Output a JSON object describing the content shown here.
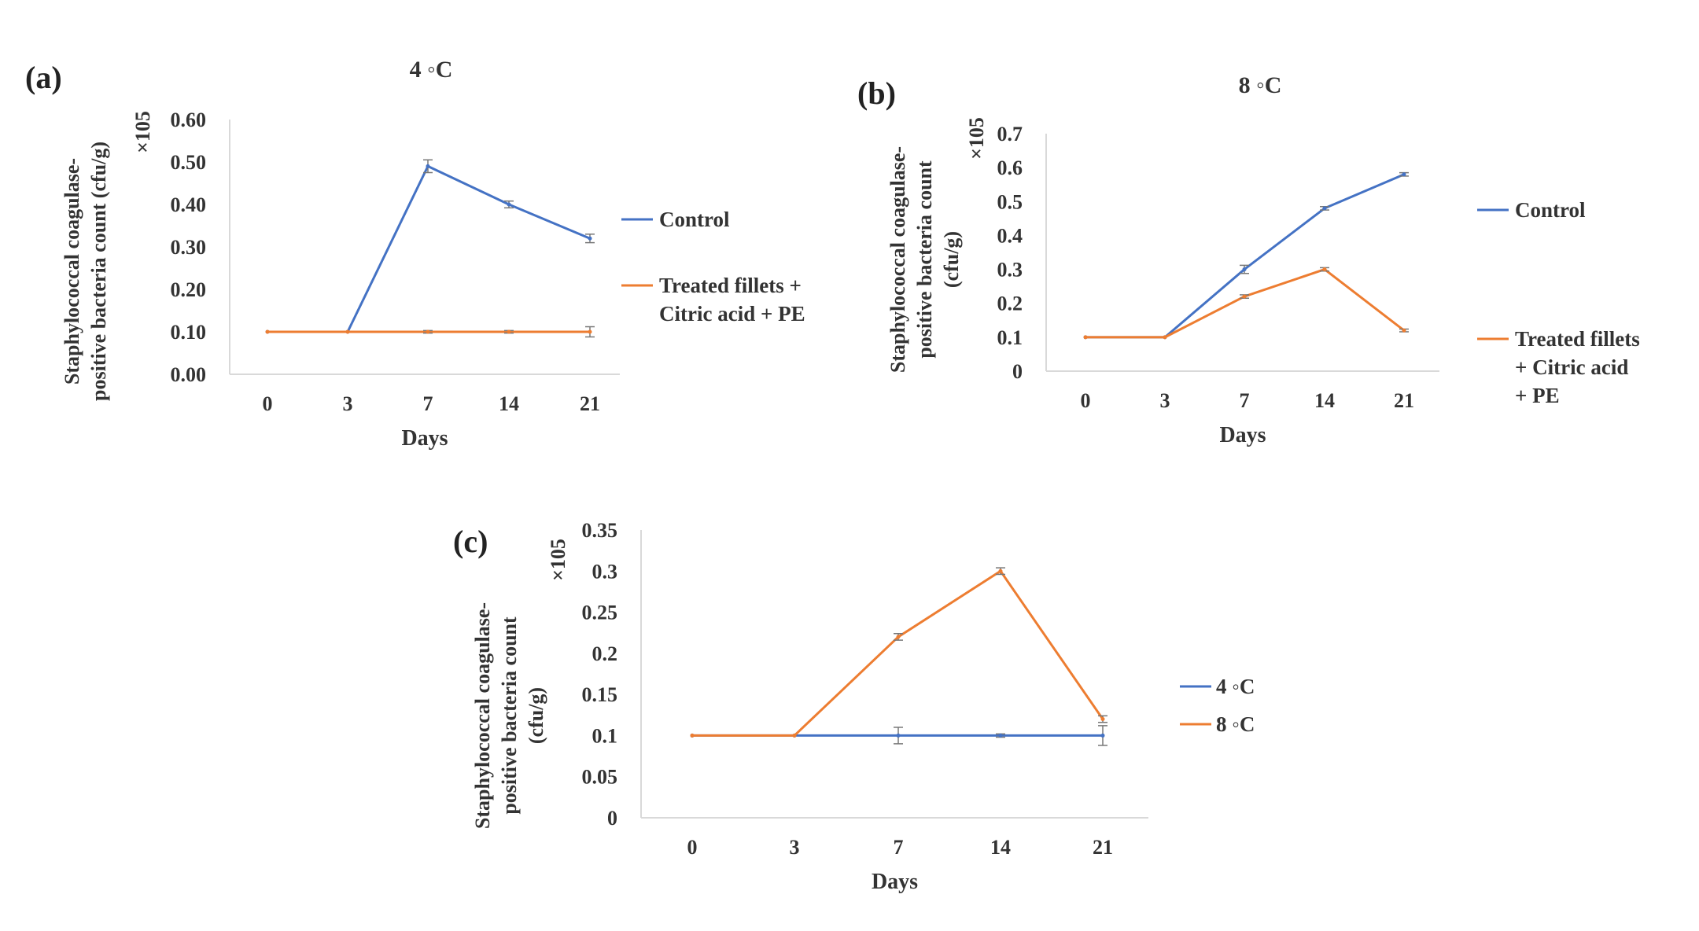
{
  "chart_data": [
    {
      "type": "line",
      "panel_label": "(a)",
      "title": "4 ◦C",
      "xlabel": "Days",
      "ylabel_lines": [
        "Staphylococcal coagulase-",
        "positive bacteria count (cfu/g)"
      ],
      "multiplier": "×105",
      "categories": [
        "0",
        "3",
        "7",
        "14",
        "21"
      ],
      "yticks": [
        "0.00",
        "0.10",
        "0.20",
        "0.30",
        "0.40",
        "0.50",
        "0.60"
      ],
      "ylim": [
        0,
        0.6
      ],
      "series": [
        {
          "name": "Control",
          "legend_lines": [
            "Control"
          ],
          "color": "#4472c4",
          "values": [
            0.1,
            0.1,
            0.49,
            0.4,
            0.32
          ],
          "errors": [
            0,
            0,
            0.015,
            0.008,
            0.01
          ]
        },
        {
          "name": "Treated fillets + Citric acid + PE",
          "legend_lines": [
            "Treated fillets +",
            "Citric acid + PE"
          ],
          "color": "#ed7d31",
          "values": [
            0.1,
            0.1,
            0.1,
            0.1,
            0.1
          ],
          "errors": [
            0,
            0,
            0.003,
            0.003,
            0.012
          ]
        }
      ]
    },
    {
      "type": "line",
      "panel_label": "(b)",
      "title": "8 ◦C",
      "xlabel": "Days",
      "ylabel_lines": [
        "Staphylococcal coagulase-",
        "positive bacteria count",
        "(cfu/g)"
      ],
      "multiplier": "×105",
      "categories": [
        "0",
        "3",
        "7",
        "14",
        "21"
      ],
      "yticks": [
        "0",
        "0.1",
        "0.2",
        "0.3",
        "0.4",
        "0.5",
        "0.6",
        "0.7"
      ],
      "ylim": [
        0,
        0.7
      ],
      "series": [
        {
          "name": "Control",
          "legend_lines": [
            "Control"
          ],
          "color": "#4472c4",
          "values": [
            0.1,
            0.1,
            0.3,
            0.48,
            0.58
          ],
          "errors": [
            0,
            0,
            0.012,
            0.005,
            0.005
          ]
        },
        {
          "name": "Treated fillets + Citric acid + PE",
          "legend_lines": [
            "Treated fillets",
            "+ Citric acid",
            "+ PE"
          ],
          "color": "#ed7d31",
          "values": [
            0.1,
            0.1,
            0.22,
            0.3,
            0.12
          ],
          "errors": [
            0,
            0,
            0.005,
            0.005,
            0.004
          ]
        }
      ]
    },
    {
      "type": "line",
      "panel_label": "(c)",
      "title": "",
      "xlabel": "Days",
      "ylabel_lines": [
        "Staphylococcal coagulase-",
        "positive bacteria count",
        "(cfu/g)"
      ],
      "multiplier": "×105",
      "categories": [
        "0",
        "3",
        "7",
        "14",
        "21"
      ],
      "yticks": [
        "0",
        "0.05",
        "0.1",
        "0.15",
        "0.2",
        "0.25",
        "0.3",
        "0.35"
      ],
      "ylim": [
        0,
        0.35
      ],
      "series": [
        {
          "name": "4 ◦C",
          "legend_lines": [
            "4 ◦C"
          ],
          "color": "#4472c4",
          "values": [
            0.1,
            0.1,
            0.1,
            0.1,
            0.1
          ],
          "errors": [
            0,
            0,
            0.01,
            0.002,
            0.012
          ]
        },
        {
          "name": "8 ◦C",
          "legend_lines": [
            "8 ◦C"
          ],
          "color": "#ed7d31",
          "values": [
            0.1,
            0.1,
            0.22,
            0.3,
            0.12
          ],
          "errors": [
            0,
            0,
            0.004,
            0.004,
            0.004
          ]
        }
      ]
    }
  ]
}
